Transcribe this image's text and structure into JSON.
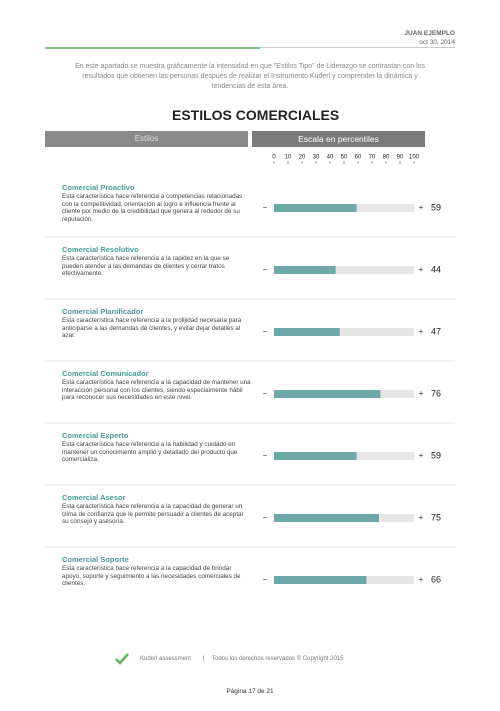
{
  "header": {
    "name": "JUAN EJEMPLO",
    "date": "oct 30, 2014"
  },
  "intro": "En este apartado se muestra gráficamente la intensidad en que \"Estilos Tipo\" de Liderazgo se contrastan con los resultados que obtienen las personas después de realizar el Instrumento Kuderl y comprender la dinámica y tendencias de esta área.",
  "title": "ESTILOS COMERCIALES",
  "columns": [
    "Estilos",
    "Escala en percentiles"
  ],
  "scale": {
    "xlim": [
      0,
      100
    ],
    "xticks": [
      0,
      10,
      20,
      30,
      40,
      50,
      60,
      70,
      80,
      90,
      100
    ],
    "minus": "−",
    "plus": "+",
    "color": "#6ea8a8"
  },
  "rows": [
    {
      "name": "Comercial Proactivo",
      "description": "Esta característica hace referencia a competencias relacionadas con la competitividad, orientación al logro e influencia frente al cliente por medio de la credibilidad que genera al rededor de su reputación.",
      "value": 59
    },
    {
      "name": "Comercial Resolutivo",
      "description": "Esta característica hace referencia a la rapidez en la que se pueden atender a las demandas de clientes y cerrar tratos efectivamente.",
      "value": 44
    },
    {
      "name": "Comercial Planificador",
      "description": "Esta característica hace referencia a la prolijidad necesaria para anticiparse a las demandas de clientes, y evitar dejar detalles al azar.",
      "value": 47
    },
    {
      "name": "Comercial Comunicador",
      "description": "Esta característica hace referencia a la capacidad de mantener una interacción personal con los clientes, siendo especialmente hábil para reconocer sus necesidades en este nivel.",
      "value": 76
    },
    {
      "name": "Comercial Experto",
      "description": "Esta característica hace referencia a la habilidad y cuidado en mantener un conocimiento amplio y detallado del producto que comercializa.",
      "value": 59
    },
    {
      "name": "Comercial Asesor",
      "description": "Esta característica hace referencia a la capacidad de generar un clima de confianza que le permite persuadir a clientes de aceptar su consejo y asesoría.",
      "value": 75
    },
    {
      "name": "Comercial Soporte",
      "description": "Esta característica hace referencia a la capacidad de brindar apoyo, soporte y seguimiento a las necesidades comerciales de clientes.",
      "value": 66
    }
  ],
  "footer": {
    "brand": "Kuderl assessment",
    "separator": "|",
    "rights": "Todos los derechos reservados © Copyright 2015",
    "page": "Página 17 de 21"
  }
}
